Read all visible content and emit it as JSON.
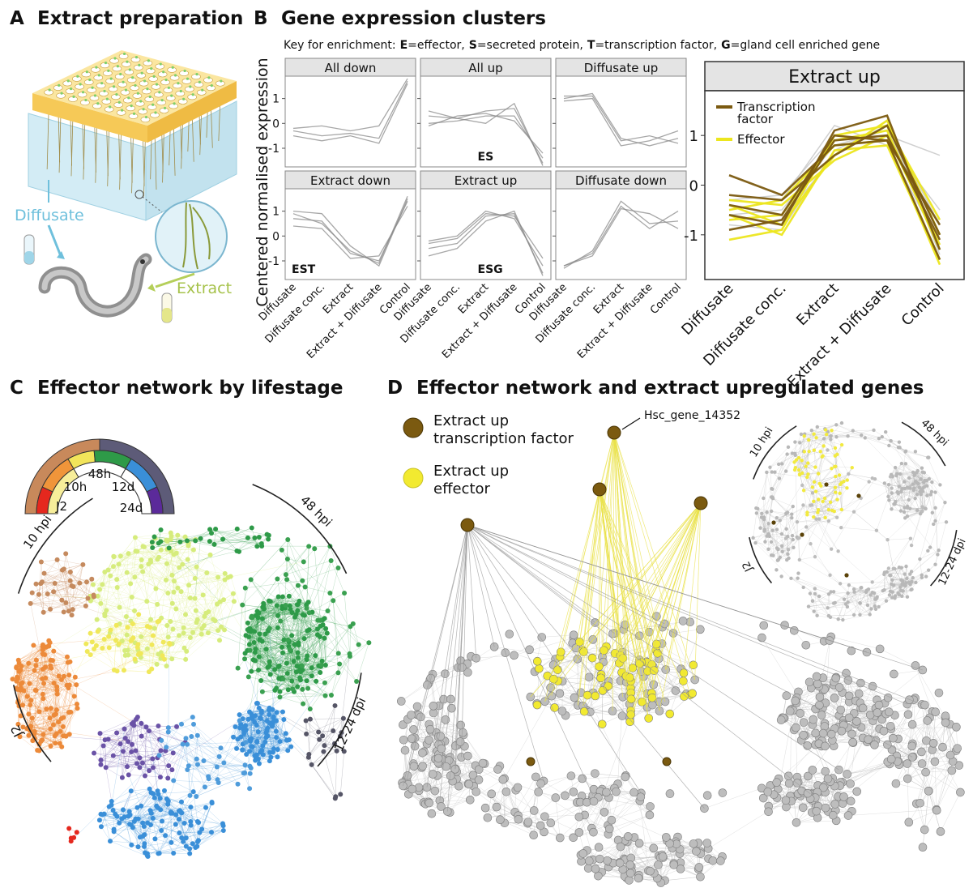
{
  "panel_a": {
    "letter": "A",
    "title": "Extract preparation",
    "diffusate_label": "Diffusate",
    "extract_label": "Extract"
  },
  "panel_b": {
    "letter": "B",
    "title": "Gene expression clusters",
    "key_intro": "Key for enrichment:",
    "key_items": [
      {
        "code": "E",
        "text": "=effector,"
      },
      {
        "code": "S",
        "text": "=secreted protein,"
      },
      {
        "code": "T",
        "text": "=transcription factor,"
      },
      {
        "code": "G",
        "text": "=gland cell enriched gene"
      }
    ]
  },
  "chart_data": [
    {
      "type": "facet-line",
      "ylabel": "Centered normalised expression",
      "categories": [
        "Diffusate",
        "Diffusate conc.",
        "Extract",
        "Extract + Diffusate",
        "Control"
      ],
      "ylim": [
        -1.75,
        1.9
      ],
      "yticks": [
        1,
        0,
        -1
      ],
      "color": "#8a8a8a",
      "facets": [
        {
          "title": "All down",
          "series": [
            {
              "values": [
                -0.3,
                -0.5,
                -0.4,
                -0.6,
                1.7
              ]
            },
            {
              "values": [
                -0.2,
                -0.1,
                -0.3,
                -0.1,
                1.8
              ]
            },
            {
              "values": [
                -0.5,
                -0.7,
                -0.5,
                -0.8,
                1.6
              ]
            }
          ]
        },
        {
          "title": "All up",
          "annotation": "ES",
          "series": [
            {
              "values": [
                0.3,
                0.2,
                0.5,
                0.6,
                -1.6
              ]
            },
            {
              "values": [
                0,
                0.1,
                0.3,
                0.3,
                -1.4
              ]
            },
            {
              "values": [
                0.5,
                0.2,
                0,
                0.8,
                -1.7
              ]
            },
            {
              "values": [
                -0.1,
                0.3,
                0.4,
                0.1,
                -1.2
              ]
            }
          ]
        },
        {
          "title": "Diffusate up",
          "series": [
            {
              "values": [
                1.1,
                1.1,
                -0.7,
                -0.5,
                -0.8
              ]
            },
            {
              "values": [
                0.9,
                1.0,
                -0.9,
                -0.7,
                -0.3
              ]
            },
            {
              "values": [
                1.0,
                1.2,
                -0.6,
                -0.9,
                -0.6
              ]
            }
          ]
        },
        {
          "title": "Extract down",
          "annotation": "EST",
          "series": [
            {
              "values": [
                0.7,
                0.6,
                -0.7,
                -1.0,
                1.4
              ]
            },
            {
              "values": [
                1.0,
                0.9,
                -0.4,
                -1.2,
                1.5
              ]
            },
            {
              "values": [
                0.4,
                0.3,
                -0.9,
                -0.8,
                1.2
              ]
            },
            {
              "values": [
                0.9,
                0.5,
                -0.6,
                -1.1,
                1.6
              ]
            }
          ]
        },
        {
          "title": "Extract up",
          "annotation": "ESG",
          "series": [
            {
              "values": [
                -0.5,
                -0.3,
                0.8,
                0.9,
                -1.5
              ]
            },
            {
              "values": [
                -0.2,
                0,
                1.0,
                0.7,
                -1.2
              ]
            },
            {
              "values": [
                -0.8,
                -0.5,
                0.6,
                1.0,
                -1.6
              ]
            },
            {
              "values": [
                -0.3,
                -0.1,
                0.9,
                0.8,
                -0.9
              ]
            }
          ]
        },
        {
          "title": "Diffusate down",
          "series": [
            {
              "values": [
                -1.3,
                -0.6,
                1.4,
                0.5,
                0.6
              ]
            },
            {
              "values": [
                -1.2,
                -0.8,
                1.1,
                0.9,
                0.3
              ]
            },
            {
              "values": [
                -1.2,
                -0.7,
                1.2,
                0.3,
                1.0
              ]
            }
          ]
        }
      ]
    },
    {
      "type": "line",
      "title": "Extract up",
      "categories": [
        "Diffusate",
        "Diffusate conc.",
        "Extract",
        "Extract + Diffusate",
        "Control"
      ],
      "ylim": [
        -1.9,
        1.9
      ],
      "yticks": [
        1,
        0,
        -1
      ],
      "legend": "top-left",
      "series": [
        {
          "color": "#c4c4c4",
          "lines": [
            [
              -0.6,
              -0.5,
              0.8,
              1.1,
              -1.0
            ],
            [
              -0.3,
              -0.2,
              1.0,
              0.9,
              -0.5
            ],
            [
              -0.9,
              -0.7,
              0.6,
              1.3,
              -1.4
            ],
            [
              -0.4,
              -0.6,
              0.9,
              1.0,
              0.6
            ],
            [
              -0.5,
              -0.3,
              1.2,
              0.8,
              -1.2
            ],
            [
              -0.8,
              -0.9,
              0.7,
              1.2,
              -0.8
            ]
          ]
        },
        {
          "name": "Effector",
          "color": "#ece61e",
          "lines": [
            [
              -0.7,
              -0.6,
              0.9,
              1.1,
              -1.3
            ],
            [
              -0.4,
              -0.8,
              0.6,
              1.3,
              -1.0
            ],
            [
              -0.5,
              -0.3,
              0.8,
              0.9,
              -1.6
            ],
            [
              -1.1,
              -0.9,
              1.0,
              1.2,
              -0.7
            ],
            [
              -0.3,
              -0.4,
              0.5,
              1.0,
              -1.2
            ],
            [
              -0.6,
              -1.0,
              0.7,
              0.8,
              -1.5
            ]
          ]
        },
        {
          "name": "Transcription factor",
          "color": "#7b5a10",
          "lines": [
            [
              0.2,
              -0.2,
              0.8,
              0.9,
              -1.5
            ],
            [
              -0.4,
              -0.6,
              1.0,
              0.9,
              -0.8
            ],
            [
              -0.6,
              -0.8,
              1.1,
              1.4,
              -1.3
            ],
            [
              -0.2,
              -0.3,
              0.6,
              1.2,
              -1.0
            ],
            [
              -0.9,
              -0.7,
              0.9,
              1.0,
              -1.1
            ]
          ]
        }
      ]
    }
  ],
  "panel_c": {
    "letter": "C",
    "title": "Effector network by lifestage",
    "lifestage_key": [
      "J2",
      "10h",
      "48h",
      "12d",
      "24d"
    ],
    "arc_labels": [
      "10 hpi",
      "48 hpi",
      "12-24 dpi",
      "J2"
    ]
  },
  "panel_d": {
    "letter": "D",
    "title": "Effector network and extract upregulated genes",
    "legend": [
      {
        "lines": [
          "Extract up",
          "transcription factor"
        ]
      },
      {
        "lines": [
          "Extract up",
          "effector"
        ]
      }
    ],
    "callout": "Hsc_gene_14352",
    "arc_labels": [
      "10 hpi",
      "48 hpi",
      "12-24 dpi",
      "J2"
    ]
  }
}
